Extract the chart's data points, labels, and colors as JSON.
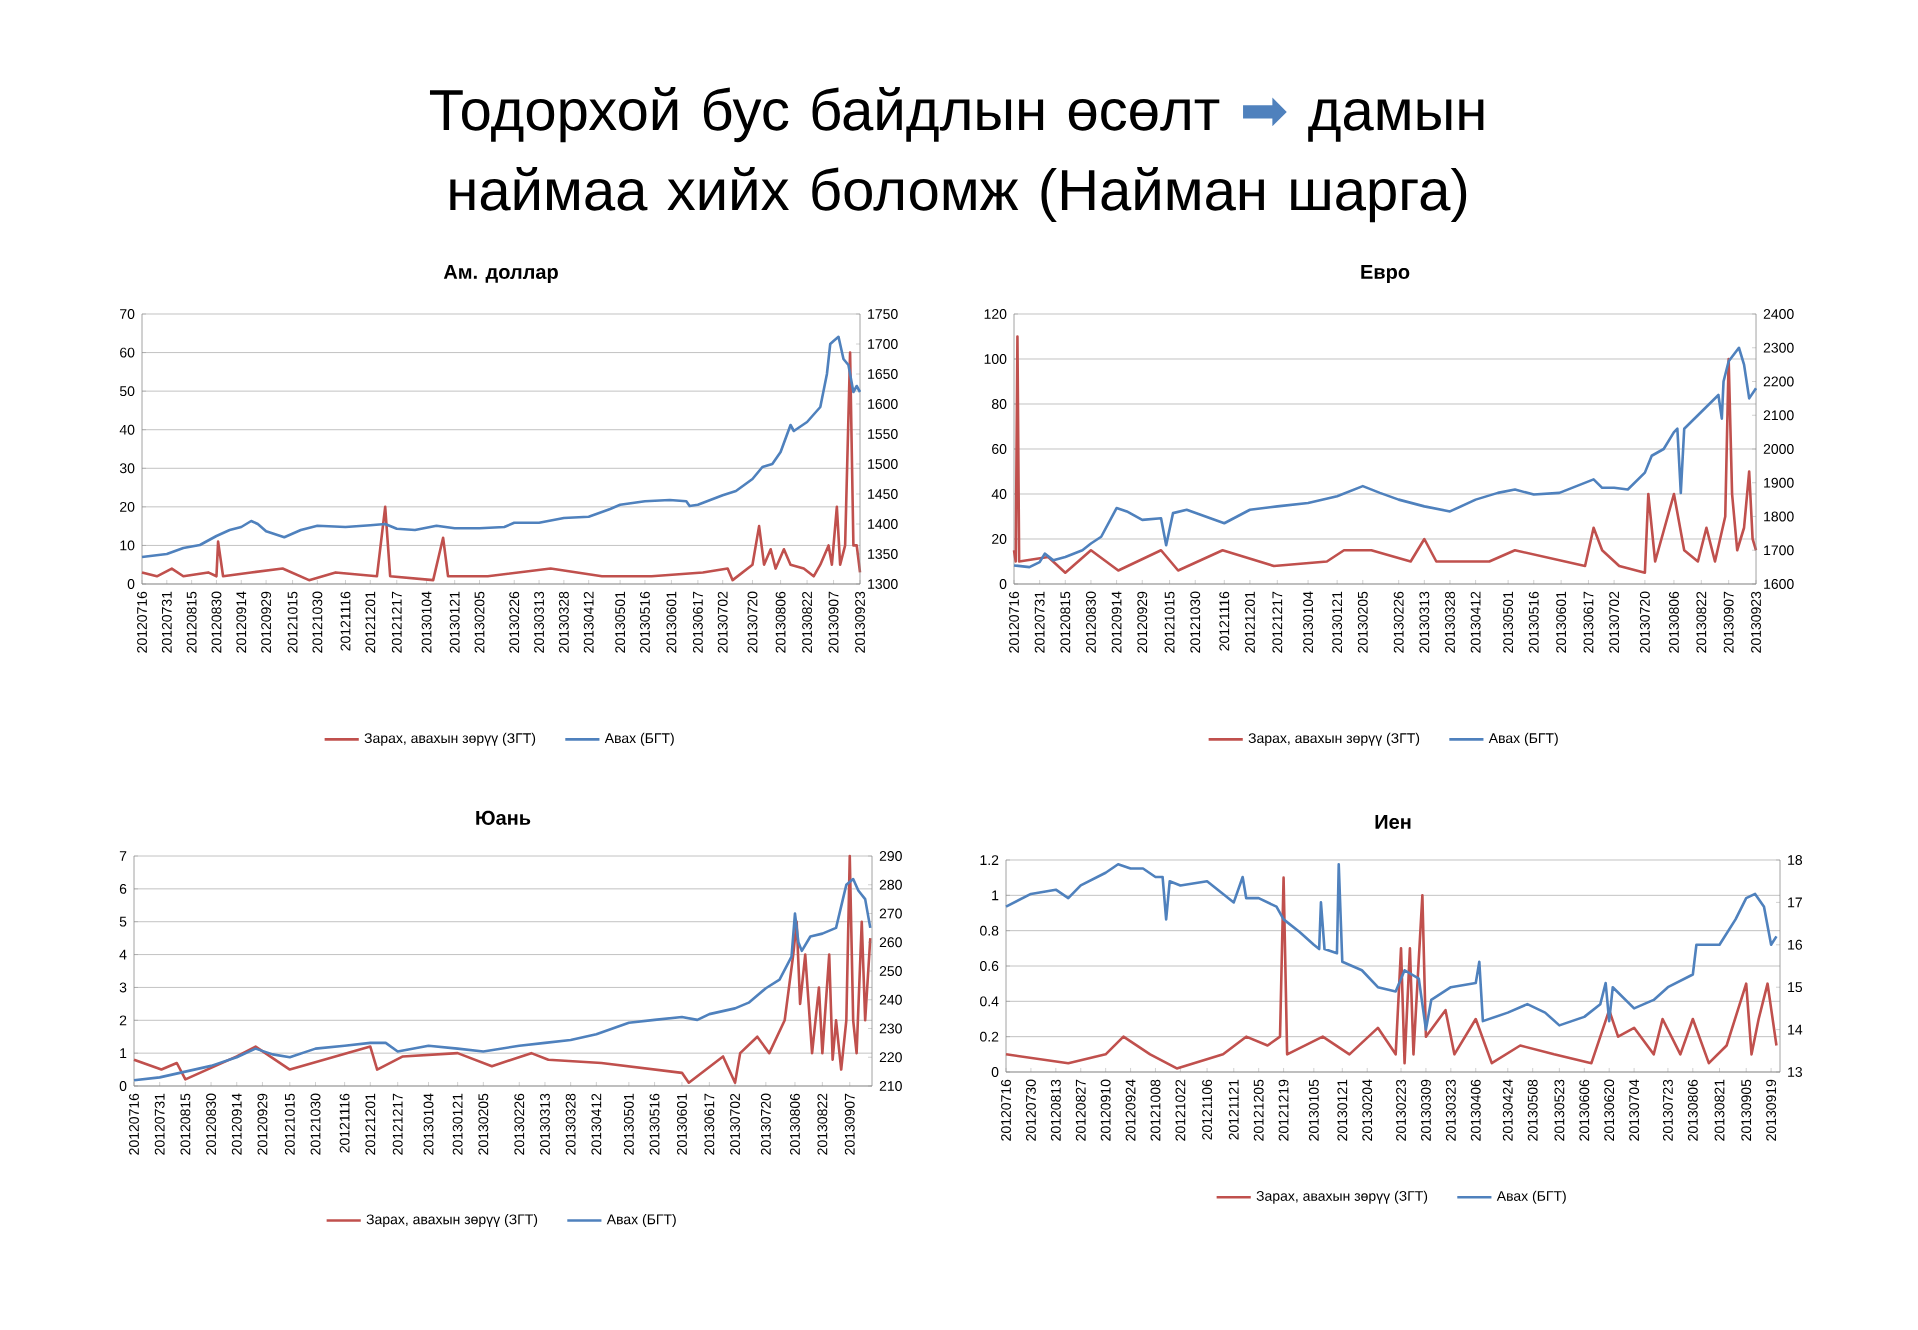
{
  "chart_data": [
    {
      "type": "line",
      "title": "Тодорхой бус байдлын өсөлт ➡ дамын наймаа хийх боломж (Найман шарга)",
      "subtitle": "Ам. доллар",
      "grid": "y",
      "legend": "bottom",
      "xlim": [
        "2012-07-16",
        "2013-09-23"
      ],
      "xticks": [
        {
          "value": "2012-07-16",
          "label": "20120716"
        },
        {
          "value": "2012-07-31",
          "label": "20120731"
        },
        {
          "value": "2012-08-15",
          "label": "20120815"
        },
        {
          "value": "2012-08-30",
          "label": "20120830"
        },
        {
          "value": "2012-09-14",
          "label": "20120914"
        },
        {
          "value": "2012-09-29",
          "label": "20120929"
        },
        {
          "value": "2012-10-15",
          "label": "20121015"
        },
        {
          "value": "2012-10-30",
          "label": "20121030"
        },
        {
          "value": "2012-11-16",
          "label": "20121116"
        },
        {
          "value": "2012-12-01",
          "label": "20121201"
        },
        {
          "value": "2012-12-17",
          "label": "20121217"
        },
        {
          "value": "2013-01-04",
          "label": "20130104"
        },
        {
          "value": "2013-01-21",
          "label": "20130121"
        },
        {
          "value": "2013-02-05",
          "label": "20130205"
        },
        {
          "value": "2013-02-26",
          "label": "20130226"
        },
        {
          "value": "2013-03-13",
          "label": "20130313"
        },
        {
          "value": "2013-03-28",
          "label": "20130328"
        },
        {
          "value": "2013-04-12",
          "label": "20130412"
        },
        {
          "value": "2013-05-01",
          "label": "20130501"
        },
        {
          "value": "2013-05-16",
          "label": "20130516"
        },
        {
          "value": "2013-06-01",
          "label": "20130601"
        },
        {
          "value": "2013-06-17",
          "label": "20130617"
        },
        {
          "value": "2013-07-02",
          "label": "20130702"
        },
        {
          "value": "2013-07-20",
          "label": "20130720"
        },
        {
          "value": "2013-08-06",
          "label": "20130806"
        },
        {
          "value": "2013-08-22",
          "label": "20130822"
        },
        {
          "value": "2013-09-07",
          "label": "20130907"
        },
        {
          "value": "2013-09-23",
          "label": "20130923"
        }
      ],
      "ylim": [
        0,
        70
      ],
      "yticks": [
        0,
        10,
        20,
        30,
        40,
        50,
        60,
        70
      ],
      "y2lim": [
        1300,
        1750
      ],
      "y2ticks": [
        1300,
        1350,
        1400,
        1450,
        1500,
        1550,
        1600,
        1650,
        1700,
        1750
      ],
      "series": [
        {
          "name": "Зарах, авахын зөрүү (ЗГТ)",
          "color": "#c0504d",
          "x": [
            "2012-07-16",
            "2012-07-25",
            "2012-08-03",
            "2012-08-10",
            "2012-08-25",
            "2012-08-30",
            "2012-08-31",
            "2012-09-03",
            "2012-09-20",
            "2012-10-09",
            "2012-10-25",
            "2012-11-10",
            "2012-12-05",
            "2012-12-10",
            "2012-12-13",
            "2013-01-08",
            "2013-01-14",
            "2013-01-17",
            "2013-02-10",
            "2013-03-20",
            "2013-04-20",
            "2013-05-20",
            "2013-06-20",
            "2013-07-05",
            "2013-07-08",
            "2013-07-20",
            "2013-07-24",
            "2013-07-27",
            "2013-07-31",
            "2013-08-03",
            "2013-08-08",
            "2013-08-12",
            "2013-08-20",
            "2013-08-26",
            "2013-08-30",
            "2013-09-04",
            "2013-09-06",
            "2013-09-09",
            "2013-09-11",
            "2013-09-14",
            "2013-09-17",
            "2013-09-19",
            "2013-09-21",
            "2013-09-23"
          ],
          "values": [
            3,
            2,
            4,
            2,
            3,
            2,
            11,
            2,
            3,
            4,
            1,
            3,
            2,
            20,
            2,
            1,
            12,
            2,
            2,
            4,
            2,
            2,
            3,
            4,
            1,
            5,
            15,
            5,
            9,
            4,
            9,
            5,
            4,
            2,
            5,
            10,
            5,
            20,
            5,
            10,
            60,
            10,
            10,
            3
          ]
        },
        {
          "name": "Авах (БГТ)",
          "color": "#4f81bd",
          "axis": "y2",
          "x": [
            "2012-07-16",
            "2012-07-31",
            "2012-08-10",
            "2012-08-20",
            "2012-08-30",
            "2012-09-07",
            "2012-09-14",
            "2012-09-20",
            "2012-09-24",
            "2012-09-29",
            "2012-10-10",
            "2012-10-20",
            "2012-10-30",
            "2012-11-16",
            "2012-12-01",
            "2012-12-10",
            "2012-12-17",
            "2012-12-28",
            "2013-01-10",
            "2013-01-21",
            "2013-02-05",
            "2013-02-20",
            "2013-02-26",
            "2013-03-13",
            "2013-03-28",
            "2013-04-12",
            "2013-04-25",
            "2013-05-01",
            "2013-05-16",
            "2013-05-31",
            "2013-06-10",
            "2013-06-12",
            "2013-06-17",
            "2013-07-02",
            "2013-07-10",
            "2013-07-20",
            "2013-07-26",
            "2013-08-01",
            "2013-08-06",
            "2013-08-12",
            "2013-08-14",
            "2013-08-22",
            "2013-08-30",
            "2013-09-03",
            "2013-09-05",
            "2013-09-07",
            "2013-09-10",
            "2013-09-13",
            "2013-09-16",
            "2013-09-19",
            "2013-09-21",
            "2013-09-23"
          ],
          "values": [
            1345,
            1350,
            1360,
            1365,
            1380,
            1390,
            1395,
            1405,
            1400,
            1388,
            1378,
            1390,
            1397,
            1395,
            1398,
            1400,
            1392,
            1390,
            1397,
            1393,
            1393,
            1395,
            1402,
            1402,
            1410,
            1412,
            1425,
            1432,
            1438,
            1440,
            1438,
            1430,
            1432,
            1448,
            1455,
            1475,
            1495,
            1500,
            1520,
            1565,
            1555,
            1570,
            1595,
            1650,
            1700,
            1705,
            1712,
            1675,
            1665,
            1620,
            1630,
            1620
          ]
        }
      ]
    },
    {
      "type": "line",
      "title": "Евро",
      "grid": "y",
      "legend": "bottom",
      "xlim": [
        "2012-07-16",
        "2013-09-23"
      ],
      "xticks": [
        {
          "value": "2012-07-16",
          "label": "20120716"
        },
        {
          "value": "2012-07-31",
          "label": "20120731"
        },
        {
          "value": "2012-08-15",
          "label": "20120815"
        },
        {
          "value": "2012-08-30",
          "label": "20120830"
        },
        {
          "value": "2012-09-14",
          "label": "20120914"
        },
        {
          "value": "2012-09-29",
          "label": "20120929"
        },
        {
          "value": "2012-10-15",
          "label": "20121015"
        },
        {
          "value": "2012-10-30",
          "label": "20121030"
        },
        {
          "value": "2012-11-16",
          "label": "20121116"
        },
        {
          "value": "2012-12-01",
          "label": "20121201"
        },
        {
          "value": "2012-12-17",
          "label": "20121217"
        },
        {
          "value": "2013-01-04",
          "label": "20130104"
        },
        {
          "value": "2013-01-21",
          "label": "20130121"
        },
        {
          "value": "2013-02-05",
          "label": "20130205"
        },
        {
          "value": "2013-02-26",
          "label": "20130226"
        },
        {
          "value": "2013-03-13",
          "label": "20130313"
        },
        {
          "value": "2013-03-28",
          "label": "20130328"
        },
        {
          "value": "2013-04-12",
          "label": "20130412"
        },
        {
          "value": "2013-05-01",
          "label": "20130501"
        },
        {
          "value": "2013-05-16",
          "label": "20130516"
        },
        {
          "value": "2013-06-01",
          "label": "20130601"
        },
        {
          "value": "2013-06-17",
          "label": "20130617"
        },
        {
          "value": "2013-07-02",
          "label": "20130702"
        },
        {
          "value": "2013-07-20",
          "label": "20130720"
        },
        {
          "value": "2013-08-06",
          "label": "20130806"
        },
        {
          "value": "2013-08-22",
          "label": "20130822"
        },
        {
          "value": "2013-09-07",
          "label": "20130907"
        },
        {
          "value": "2013-09-23",
          "label": "20130923"
        }
      ],
      "ylim": [
        0,
        120
      ],
      "yticks": [
        0,
        20,
        40,
        60,
        80,
        100,
        120
      ],
      "y2lim": [
        1600,
        2400
      ],
      "y2ticks": [
        1600,
        1700,
        1800,
        1900,
        2000,
        2100,
        2200,
        2300,
        2400
      ],
      "series": [
        {
          "name": "Зарах, авахын зөрүү (ЗГТ)",
          "color": "#c0504d",
          "x": [
            "2012-07-16",
            "2012-07-17",
            "2012-07-18",
            "2012-07-19",
            "2012-08-05",
            "2012-08-15",
            "2012-08-30",
            "2012-09-15",
            "2012-10-10",
            "2012-10-20",
            "2012-11-15",
            "2012-12-15",
            "2013-01-15",
            "2013-01-25",
            "2013-02-10",
            "2013-03-05",
            "2013-03-13",
            "2013-03-20",
            "2013-04-20",
            "2013-05-05",
            "2013-06-15",
            "2013-06-20",
            "2013-06-25",
            "2013-07-05",
            "2013-07-20",
            "2013-07-22",
            "2013-07-26",
            "2013-08-06",
            "2013-08-12",
            "2013-08-20",
            "2013-08-25",
            "2013-08-30",
            "2013-09-05",
            "2013-09-07",
            "2013-09-09",
            "2013-09-12",
            "2013-09-16",
            "2013-09-19",
            "2013-09-21",
            "2013-09-23"
          ],
          "values": [
            15,
            10,
            110,
            10,
            12,
            5,
            15,
            6,
            15,
            6,
            15,
            8,
            10,
            15,
            15,
            10,
            20,
            10,
            10,
            15,
            8,
            25,
            15,
            8,
            5,
            40,
            10,
            40,
            15,
            10,
            25,
            10,
            30,
            100,
            40,
            15,
            25,
            50,
            20,
            15
          ]
        },
        {
          "name": "Авах (БГТ)",
          "color": "#4f81bd",
          "axis": "y2",
          "x": [
            "2012-07-16",
            "2012-07-25",
            "2012-07-31",
            "2012-08-03",
            "2012-08-08",
            "2012-08-15",
            "2012-08-25",
            "2012-08-30",
            "2012-09-05",
            "2012-09-14",
            "2012-09-20",
            "2012-09-29",
            "2012-10-10",
            "2012-10-13",
            "2012-10-17",
            "2012-10-25",
            "2012-11-05",
            "2012-11-16",
            "2012-12-01",
            "2012-12-17",
            "2013-01-04",
            "2013-01-21",
            "2013-02-05",
            "2013-02-15",
            "2013-02-26",
            "2013-03-13",
            "2013-03-28",
            "2013-04-12",
            "2013-04-25",
            "2013-05-05",
            "2013-05-16",
            "2013-05-31",
            "2013-06-10",
            "2013-06-20",
            "2013-06-25",
            "2013-07-02",
            "2013-07-10",
            "2013-07-20",
            "2013-07-24",
            "2013-07-31",
            "2013-08-06",
            "2013-08-08",
            "2013-08-10",
            "2013-08-12",
            "2013-08-22",
            "2013-09-01",
            "2013-09-03",
            "2013-09-04",
            "2013-09-07",
            "2013-09-13",
            "2013-09-16",
            "2013-09-19",
            "2013-09-23"
          ],
          "values": [
            1655,
            1650,
            1665,
            1690,
            1670,
            1680,
            1700,
            1720,
            1740,
            1825,
            1815,
            1790,
            1795,
            1715,
            1810,
            1820,
            1800,
            1780,
            1820,
            1830,
            1840,
            1860,
            1890,
            1870,
            1850,
            1830,
            1815,
            1850,
            1870,
            1880,
            1865,
            1870,
            1890,
            1910,
            1885,
            1885,
            1880,
            1930,
            1980,
            2000,
            2050,
            2060,
            1870,
            2060,
            2110,
            2160,
            2090,
            2200,
            2260,
            2300,
            2250,
            2150,
            2180
          ]
        }
      ]
    },
    {
      "type": "line",
      "title": "Юань",
      "grid": "y",
      "legend": "bottom",
      "xlim": [
        "2012-07-16",
        "2013-09-20"
      ],
      "xticks": [
        {
          "value": "2012-07-16",
          "label": "20120716"
        },
        {
          "value": "2012-07-31",
          "label": "20120731"
        },
        {
          "value": "2012-08-15",
          "label": "20120815"
        },
        {
          "value": "2012-08-30",
          "label": "20120830"
        },
        {
          "value": "2012-09-14",
          "label": "20120914"
        },
        {
          "value": "2012-09-29",
          "label": "20120929"
        },
        {
          "value": "2012-10-15",
          "label": "20121015"
        },
        {
          "value": "2012-10-30",
          "label": "20121030"
        },
        {
          "value": "2012-11-16",
          "label": "20121116"
        },
        {
          "value": "2012-12-01",
          "label": "20121201"
        },
        {
          "value": "2012-12-17",
          "label": "20121217"
        },
        {
          "value": "2013-01-04",
          "label": "20130104"
        },
        {
          "value": "2013-01-21",
          "label": "20130121"
        },
        {
          "value": "2013-02-05",
          "label": "20130205"
        },
        {
          "value": "2013-02-26",
          "label": "20130226"
        },
        {
          "value": "2013-03-13",
          "label": "20130313"
        },
        {
          "value": "2013-03-28",
          "label": "20130328"
        },
        {
          "value": "2013-04-12",
          "label": "20130412"
        },
        {
          "value": "2013-05-01",
          "label": "20130501"
        },
        {
          "value": "2013-05-16",
          "label": "20130516"
        },
        {
          "value": "2013-06-01",
          "label": "20130601"
        },
        {
          "value": "2013-06-17",
          "label": "20130617"
        },
        {
          "value": "2013-07-02",
          "label": "20130702"
        },
        {
          "value": "2013-07-20",
          "label": "20130720"
        },
        {
          "value": "2013-08-06",
          "label": "20130806"
        },
        {
          "value": "2013-08-22",
          "label": "20130822"
        },
        {
          "value": "2013-09-07",
          "label": "20130907"
        }
      ],
      "ylim": [
        0,
        7
      ],
      "yticks": [
        0,
        1,
        2,
        3,
        4,
        5,
        6,
        7
      ],
      "y2lim": [
        210,
        290
      ],
      "y2ticks": [
        210,
        220,
        230,
        240,
        250,
        260,
        270,
        280,
        290
      ],
      "series": [
        {
          "name": "Зарах, авахын зөрүү (ЗГТ)",
          "color": "#c0504d",
          "x": [
            "2012-07-16",
            "2012-08-01",
            "2012-08-10",
            "2012-08-15",
            "2012-09-14",
            "2012-09-25",
            "2012-10-15",
            "2012-12-01",
            "2012-12-05",
            "2012-12-20",
            "2013-01-21",
            "2013-02-10",
            "2013-03-05",
            "2013-03-15",
            "2013-04-15",
            "2013-06-01",
            "2013-06-05",
            "2013-06-25",
            "2013-07-02",
            "2013-07-05",
            "2013-07-15",
            "2013-07-22",
            "2013-07-31",
            "2013-08-05",
            "2013-08-07",
            "2013-08-09",
            "2013-08-12",
            "2013-08-16",
            "2013-08-20",
            "2013-08-22",
            "2013-08-26",
            "2013-08-28",
            "2013-08-30",
            "2013-09-02",
            "2013-09-05",
            "2013-09-07",
            "2013-09-09",
            "2013-09-11",
            "2013-09-14",
            "2013-09-16",
            "2013-09-19"
          ],
          "values": [
            0.8,
            0.5,
            0.7,
            0.2,
            0.9,
            1.2,
            0.5,
            1.2,
            0.5,
            0.9,
            1.0,
            0.6,
            1.0,
            0.8,
            0.7,
            0.4,
            0.1,
            0.9,
            0.1,
            1.0,
            1.5,
            1.0,
            2.0,
            4.0,
            5.0,
            2.5,
            4.0,
            1.0,
            3.0,
            1.0,
            4.0,
            0.8,
            2.0,
            0.5,
            2.0,
            7.0,
            2.0,
            1.0,
            5.0,
            2.0,
            4.5
          ]
        },
        {
          "name": "Авах (БГТ)",
          "color": "#4f81bd",
          "axis": "y2",
          "x": [
            "2012-07-16",
            "2012-07-31",
            "2012-08-15",
            "2012-08-30",
            "2012-09-14",
            "2012-09-25",
            "2012-10-05",
            "2012-10-15",
            "2012-10-30",
            "2012-11-16",
            "2012-12-01",
            "2012-12-10",
            "2012-12-17",
            "2013-01-04",
            "2013-01-21",
            "2013-02-05",
            "2013-02-26",
            "2013-03-13",
            "2013-03-28",
            "2013-04-12",
            "2013-05-01",
            "2013-05-16",
            "2013-06-01",
            "2013-06-10",
            "2013-06-17",
            "2013-07-02",
            "2013-07-10",
            "2013-07-20",
            "2013-07-28",
            "2013-08-04",
            "2013-08-06",
            "2013-08-08",
            "2013-08-10",
            "2013-08-15",
            "2013-08-22",
            "2013-08-30",
            "2013-09-03",
            "2013-09-05",
            "2013-09-09",
            "2013-09-12",
            "2013-09-16",
            "2013-09-19"
          ],
          "values": [
            212,
            213,
            215,
            217,
            220,
            223,
            221,
            220,
            223,
            224,
            225,
            225,
            222,
            224,
            223,
            222,
            224,
            225,
            226,
            228,
            232,
            233,
            234,
            233,
            235,
            237,
            239,
            244,
            247,
            255,
            270,
            260,
            257,
            262,
            263,
            265,
            275,
            280,
            282,
            278,
            275,
            265
          ]
        }
      ]
    },
    {
      "type": "line",
      "title": "Иен",
      "grid": "y",
      "legend": "bottom",
      "xlim": [
        "2012-07-16",
        "2013-09-24"
      ],
      "xticks": [
        {
          "value": "2012-07-16",
          "label": "20120716"
        },
        {
          "value": "2012-07-30",
          "label": "20120730"
        },
        {
          "value": "2012-08-13",
          "label": "20120813"
        },
        {
          "value": "2012-08-27",
          "label": "20120827"
        },
        {
          "value": "2012-09-10",
          "label": "20120910"
        },
        {
          "value": "2012-09-24",
          "label": "20120924"
        },
        {
          "value": "2012-10-08",
          "label": "20121008"
        },
        {
          "value": "2012-10-22",
          "label": "20121022"
        },
        {
          "value": "2012-11-06",
          "label": "20121106"
        },
        {
          "value": "2012-11-21",
          "label": "20121121"
        },
        {
          "value": "2012-12-05",
          "label": "20121205"
        },
        {
          "value": "2012-12-19",
          "label": "20121219"
        },
        {
          "value": "2013-01-05",
          "label": "20130105"
        },
        {
          "value": "2013-01-21",
          "label": "20130121"
        },
        {
          "value": "2013-02-04",
          "label": "20130204"
        },
        {
          "value": "2013-02-23",
          "label": "20130223"
        },
        {
          "value": "2013-03-09",
          "label": "20130309"
        },
        {
          "value": "2013-03-23",
          "label": "20130323"
        },
        {
          "value": "2013-04-06",
          "label": "20130406"
        },
        {
          "value": "2013-04-24",
          "label": "20130424"
        },
        {
          "value": "2013-05-08",
          "label": "20130508"
        },
        {
          "value": "2013-05-23",
          "label": "20130523"
        },
        {
          "value": "2013-06-06",
          "label": "20130606"
        },
        {
          "value": "2013-06-20",
          "label": "20130620"
        },
        {
          "value": "2013-07-04",
          "label": "20130704"
        },
        {
          "value": "2013-07-23",
          "label": "20130723"
        },
        {
          "value": "2013-08-06",
          "label": "20130806"
        },
        {
          "value": "2013-08-21",
          "label": "20130821"
        },
        {
          "value": "2013-09-05",
          "label": "20130905"
        },
        {
          "value": "2013-09-19",
          "label": "20130919"
        }
      ],
      "ylim": [
        0,
        1.2
      ],
      "yticks": [
        0,
        0.2,
        0.4,
        0.6,
        0.8,
        1,
        1.2
      ],
      "y2lim": [
        13,
        18
      ],
      "y2ticks": [
        13,
        14,
        15,
        16,
        17,
        18
      ],
      "series": [
        {
          "name": "Зарах, авахын зөрүү (ЗГТ)",
          "color": "#c0504d",
          "x": [
            "2012-07-16",
            "2012-08-20",
            "2012-09-10",
            "2012-09-20",
            "2012-10-05",
            "2012-10-20",
            "2012-11-15",
            "2012-11-28",
            "2012-12-10",
            "2012-12-17",
            "2012-12-19",
            "2012-12-21",
            "2013-01-10",
            "2013-01-25",
            "2013-02-10",
            "2013-02-20",
            "2013-02-23",
            "2013-02-25",
            "2013-02-28",
            "2013-03-02",
            "2013-03-07",
            "2013-03-09",
            "2013-03-20",
            "2013-03-25",
            "2013-04-06",
            "2013-04-15",
            "2013-05-01",
            "2013-05-20",
            "2013-06-10",
            "2013-06-20",
            "2013-06-25",
            "2013-07-04",
            "2013-07-15",
            "2013-07-20",
            "2013-07-30",
            "2013-08-06",
            "2013-08-15",
            "2013-08-25",
            "2013-09-05",
            "2013-09-08",
            "2013-09-12",
            "2013-09-17",
            "2013-09-22"
          ],
          "values": [
            0.1,
            0.05,
            0.1,
            0.2,
            0.1,
            0.02,
            0.1,
            0.2,
            0.15,
            0.2,
            1.1,
            0.1,
            0.2,
            0.1,
            0.25,
            0.1,
            0.7,
            0.05,
            0.7,
            0.1,
            1.0,
            0.2,
            0.35,
            0.1,
            0.3,
            0.05,
            0.15,
            0.1,
            0.05,
            0.35,
            0.2,
            0.25,
            0.1,
            0.3,
            0.1,
            0.3,
            0.05,
            0.15,
            0.5,
            0.1,
            0.3,
            0.5,
            0.15
          ]
        },
        {
          "name": "Авах (БГТ)",
          "color": "#4f81bd",
          "axis": "y2",
          "x": [
            "2012-07-16",
            "2012-07-30",
            "2012-08-13",
            "2012-08-20",
            "2012-08-27",
            "2012-09-10",
            "2012-09-17",
            "2012-09-24",
            "2012-10-01",
            "2012-10-08",
            "2012-10-12",
            "2012-10-14",
            "2012-10-16",
            "2012-10-22",
            "2012-11-06",
            "2012-11-15",
            "2012-11-21",
            "2012-11-26",
            "2012-11-28",
            "2012-12-05",
            "2012-12-15",
            "2012-12-19",
            "2012-12-28",
            "2013-01-05",
            "2013-01-08",
            "2013-01-09",
            "2013-01-11",
            "2013-01-18",
            "2013-01-19",
            "2013-01-21",
            "2013-02-01",
            "2013-02-10",
            "2013-02-20",
            "2013-02-25",
            "2013-03-05",
            "2013-03-09",
            "2013-03-12",
            "2013-03-23",
            "2013-04-06",
            "2013-04-08",
            "2013-04-10",
            "2013-04-24",
            "2013-05-05",
            "2013-05-15",
            "2013-05-23",
            "2013-06-06",
            "2013-06-15",
            "2013-06-18",
            "2013-06-20",
            "2013-06-22",
            "2013-07-04",
            "2013-07-15",
            "2013-07-23",
            "2013-08-06",
            "2013-08-08",
            "2013-08-21",
            "2013-08-30",
            "2013-09-05",
            "2013-09-10",
            "2013-09-15",
            "2013-09-19",
            "2013-09-22"
          ],
          "values": [
            16.9,
            17.2,
            17.3,
            17.1,
            17.4,
            17.7,
            17.9,
            17.8,
            17.8,
            17.6,
            17.6,
            16.6,
            17.5,
            17.4,
            17.5,
            17.2,
            17.0,
            17.6,
            17.1,
            17.1,
            16.9,
            16.6,
            16.3,
            16.0,
            15.9,
            17.0,
            15.9,
            15.8,
            17.9,
            15.6,
            15.4,
            15.0,
            14.9,
            15.4,
            15.2,
            14.0,
            14.7,
            15.0,
            15.1,
            15.6,
            14.2,
            14.4,
            14.6,
            14.4,
            14.1,
            14.3,
            14.6,
            15.1,
            14.2,
            15.0,
            14.5,
            14.7,
            15.0,
            15.3,
            16.0,
            16.0,
            16.6,
            17.1,
            17.2,
            16.9,
            16.0,
            16.2
          ]
        }
      ]
    }
  ]
}
